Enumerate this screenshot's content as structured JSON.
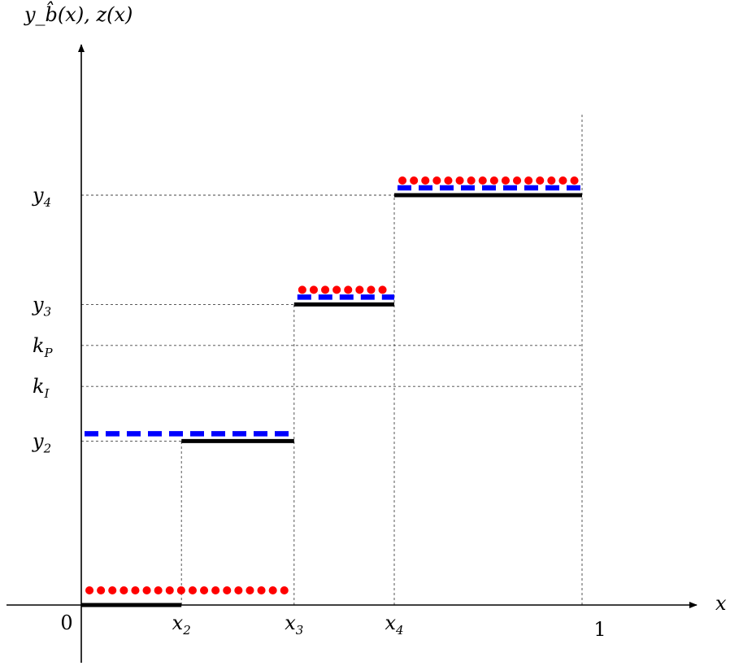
{
  "chart_data": {
    "type": "line",
    "title": "",
    "ylabel": "y_b̂(x), z(x)",
    "xlabel": "x",
    "xlim": [
      0,
      1
    ],
    "x_ticks": [
      {
        "label": "0",
        "sub": "",
        "value": 0
      },
      {
        "label": "x",
        "sub": "2",
        "value": 0.2
      },
      {
        "label": "x",
        "sub": "3",
        "value": 0.425
      },
      {
        "label": "x",
        "sub": "4",
        "value": 0.625
      },
      {
        "label": "1",
        "sub": "",
        "value": 1
      }
    ],
    "y_ticks": [
      {
        "label": "y",
        "sub": "2",
        "value": 0.3
      },
      {
        "label": "k",
        "sub": "I",
        "value": 0.4
      },
      {
        "label": "k",
        "sub": "P",
        "value": 0.475
      },
      {
        "label": "y",
        "sub": "3",
        "value": 0.55
      },
      {
        "label": "y",
        "sub": "4",
        "value": 0.75
      }
    ],
    "series": [
      {
        "style": "solid",
        "color": "#000000",
        "segments": [
          {
            "x0": 0,
            "x1": 0.2,
            "y": 0
          },
          {
            "x0": 0.2,
            "x1": 0.425,
            "y": 0.3
          },
          {
            "x0": 0.425,
            "x1": 0.625,
            "y": 0.55
          },
          {
            "x0": 0.625,
            "x1": 1,
            "y": 0.75
          }
        ]
      },
      {
        "style": "dashed",
        "color": "#0000ff",
        "segments": [
          {
            "x0": 0,
            "x1": 0.425,
            "y": 0.3
          },
          {
            "x0": 0.425,
            "x1": 0.625,
            "y": 0.55
          },
          {
            "x0": 0.625,
            "x1": 1,
            "y": 0.75
          }
        ]
      },
      {
        "style": "dotted",
        "color": "#ff0000",
        "segments": [
          {
            "x0": 0,
            "x1": 0.425,
            "y": 0
          },
          {
            "x0": 0.425,
            "x1": 0.625,
            "y": 0.55
          },
          {
            "x0": 0.625,
            "x1": 1,
            "y": 0.75
          }
        ]
      }
    ],
    "guides": {
      "vertical": [
        {
          "x": 0.2,
          "y0": 0,
          "y1": 0.3
        },
        {
          "x": 0.425,
          "y0": 0,
          "y1": 0.55
        },
        {
          "x": 0.625,
          "y0": 0,
          "y1": 0.75
        },
        {
          "x": 1,
          "y0": 0,
          "y1": 0.9
        }
      ],
      "horizontal": [
        {
          "y": 0.3,
          "x0": 0,
          "x1": 0.425
        },
        {
          "y": 0.4,
          "x0": 0,
          "x1": 1
        },
        {
          "y": 0.475,
          "x0": 0,
          "x1": 1
        },
        {
          "y": 0.55,
          "x0": 0,
          "x1": 0.425
        },
        {
          "y": 0.75,
          "x0": 0,
          "x1": 0.625
        }
      ]
    }
  }
}
